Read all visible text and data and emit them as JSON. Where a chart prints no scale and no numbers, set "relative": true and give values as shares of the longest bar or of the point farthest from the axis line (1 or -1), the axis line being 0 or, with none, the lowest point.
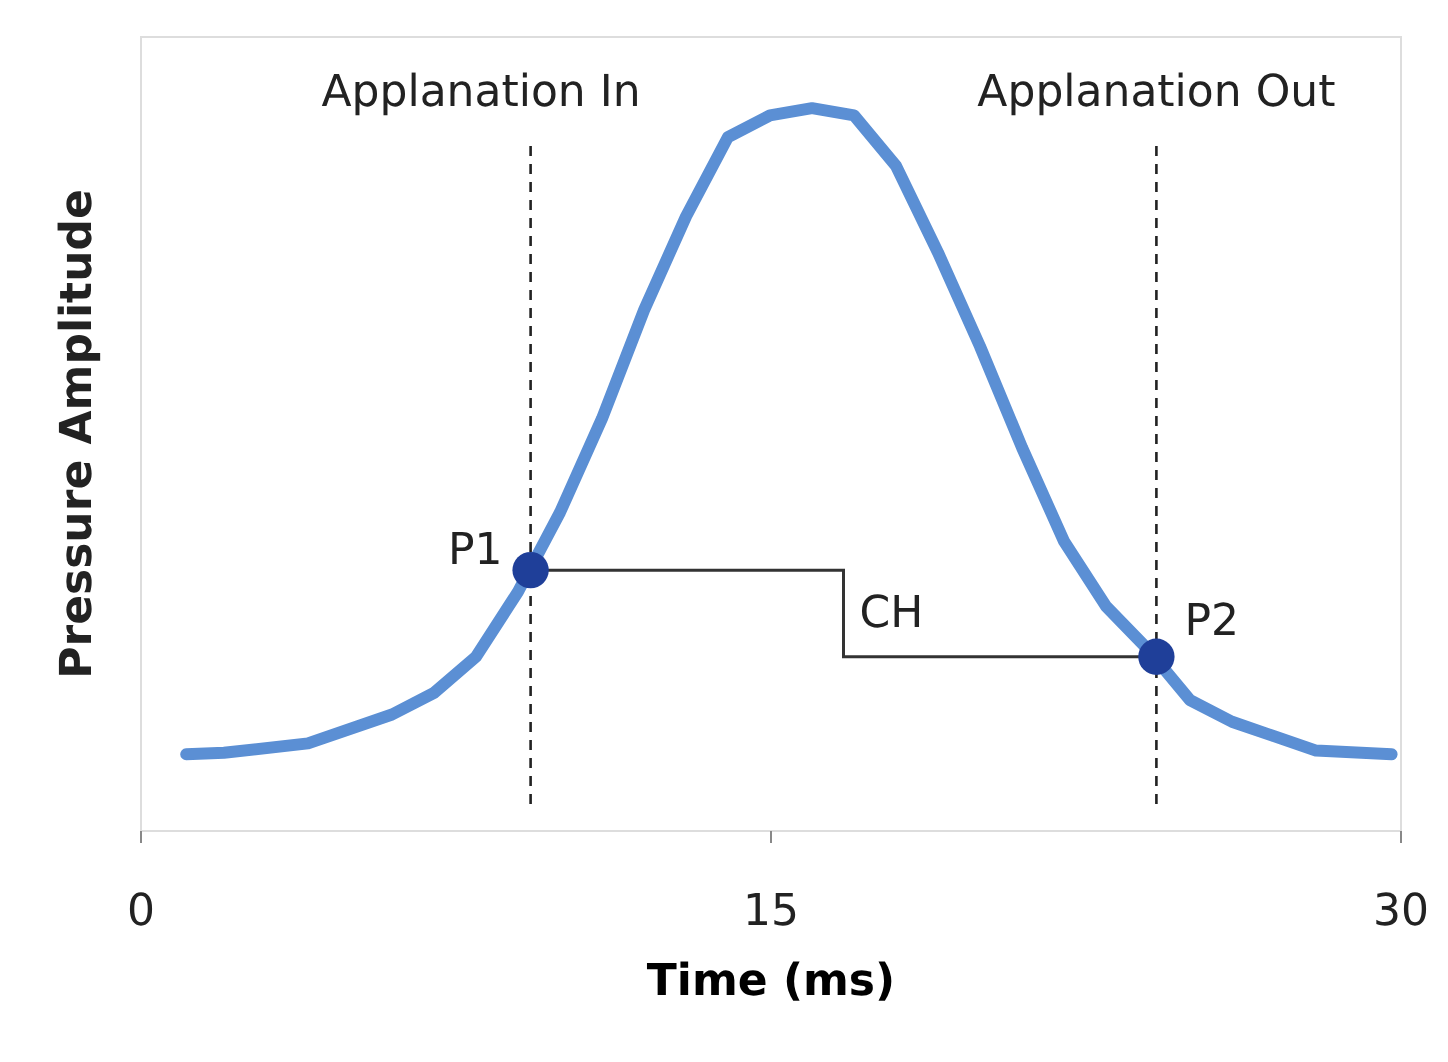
{
  "chart_data": {
    "type": "line",
    "xlabel": "Time (ms)",
    "ylabel": "Pressure Amplitude",
    "relative": true,
    "xlim": [
      0,
      30
    ],
    "xticks": [
      0,
      15,
      30
    ],
    "grid": false,
    "series": [
      {
        "type": "line",
        "color": "#5b8fd4",
        "marker": "none",
        "line_style": "solid",
        "x": [
          1.1,
          2,
          4,
          6,
          7,
          8,
          9,
          10,
          11,
          12,
          13,
          14,
          15,
          16,
          17,
          18,
          19,
          20,
          21,
          22,
          23,
          24,
          25,
          26,
          27,
          28,
          29.8
        ],
        "values": [
          0.105,
          0.107,
          0.12,
          0.16,
          0.19,
          0.24,
          0.33,
          0.44,
          0.57,
          0.72,
          0.85,
          0.96,
          0.99,
          1,
          0.99,
          0.92,
          0.8,
          0.67,
          0.53,
          0.4,
          0.31,
          0.25,
          0.18,
          0.15,
          0.13,
          0.11,
          0.105
        ]
      },
      {
        "type": "scatter",
        "color": "#1f3f99",
        "marker": "circle",
        "x": [
          9.3,
          24.2
        ],
        "values": [
          0.36,
          0.24
        ]
      }
    ],
    "ref_lines": [
      {
        "axis": "x",
        "value": 9.3,
        "label": "Applanation In",
        "color": "#222222",
        "line_style": "dashed"
      },
      {
        "axis": "x",
        "value": 24.2,
        "label": "Applanation Out",
        "color": "#222222",
        "line_style": "dashed"
      }
    ],
    "annotations": [
      {
        "text": "P1",
        "x": 9.3,
        "y": 0.36
      },
      {
        "text": "P2",
        "x": 24.2,
        "y": 0.24
      },
      "CH"
    ]
  }
}
